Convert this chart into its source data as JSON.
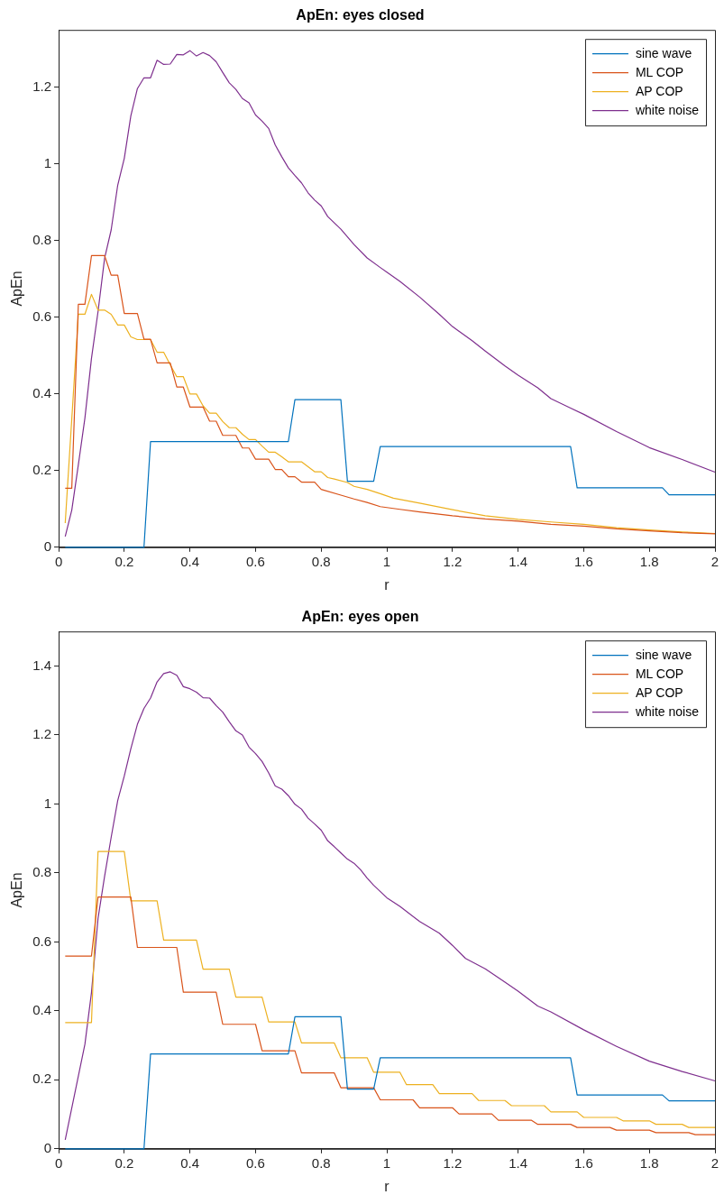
{
  "chart_data": [
    {
      "type": "line",
      "title": "ApEn: eyes closed",
      "xlabel": "r",
      "ylabel": "ApEn",
      "xlim": [
        0,
        2
      ],
      "xticks": [
        0,
        0.2,
        0.4,
        0.6,
        0.8,
        1,
        1.2,
        1.4,
        1.6,
        1.8,
        2
      ],
      "ylim": [
        0,
        1.35
      ],
      "yticks": [
        0,
        0.2,
        0.4,
        0.6,
        0.8,
        1,
        1.2
      ],
      "grid": false,
      "legend": "top right",
      "marker": "none",
      "line_style": "solid",
      "series": [
        {
          "name": "sine wave",
          "color": "#0072bd",
          "x": [
            0.02,
            0.26,
            0.28,
            0.7,
            0.72,
            0.86,
            0.88,
            0.96,
            0.98,
            1.56,
            1.58,
            1.84,
            1.86,
            2
          ],
          "values": [
            0,
            0,
            0.276,
            0.276,
            0.385,
            0.385,
            0.172,
            0.172,
            0.263,
            0.263,
            0.155,
            0.155,
            0.137,
            0.137
          ]
        },
        {
          "name": "ML COP",
          "color": "#d95319",
          "x": [
            0.02,
            0.04,
            0.06,
            0.08,
            0.1,
            0.14,
            0.16,
            0.18,
            0.2,
            0.24,
            0.26,
            0.28,
            0.3,
            0.34,
            0.36,
            0.38,
            0.4,
            0.44,
            0.46,
            0.48,
            0.5,
            0.54,
            0.56,
            0.58,
            0.6,
            0.64,
            0.66,
            0.68,
            0.7,
            0.72,
            0.74,
            0.78,
            0.8,
            0.86,
            0.9,
            0.94,
            0.98,
            1.04,
            1.1,
            1.2,
            1.3,
            1.4,
            1.5,
            1.6,
            1.7,
            1.8,
            1.9,
            2
          ],
          "values": [
            0.154,
            0.154,
            0.634,
            0.634,
            0.761,
            0.761,
            0.71,
            0.71,
            0.61,
            0.61,
            0.543,
            0.543,
            0.481,
            0.481,
            0.418,
            0.418,
            0.366,
            0.366,
            0.329,
            0.329,
            0.292,
            0.292,
            0.259,
            0.259,
            0.23,
            0.23,
            0.203,
            0.203,
            0.184,
            0.184,
            0.17,
            0.17,
            0.151,
            0.136,
            0.126,
            0.117,
            0.106,
            0.099,
            0.092,
            0.082,
            0.074,
            0.068,
            0.06,
            0.055,
            0.048,
            0.043,
            0.038,
            0.035
          ]
        },
        {
          "name": "AP COP",
          "color": "#edb120",
          "x": [
            0.02,
            0.06,
            0.08,
            0.1,
            0.12,
            0.14,
            0.16,
            0.18,
            0.2,
            0.22,
            0.24,
            0.28,
            0.3,
            0.32,
            0.34,
            0.36,
            0.38,
            0.4,
            0.42,
            0.44,
            0.46,
            0.48,
            0.5,
            0.52,
            0.54,
            0.56,
            0.58,
            0.6,
            0.62,
            0.64,
            0.66,
            0.68,
            0.7,
            0.74,
            0.76,
            0.78,
            0.8,
            0.82,
            0.84,
            0.88,
            0.9,
            0.94,
            0.98,
            1.02,
            1.1,
            1.2,
            1.3,
            1.4,
            1.5,
            1.6,
            1.7,
            1.8,
            1.9,
            2
          ],
          "values": [
            0.063,
            0.608,
            0.608,
            0.66,
            0.619,
            0.619,
            0.608,
            0.58,
            0.58,
            0.549,
            0.542,
            0.542,
            0.509,
            0.509,
            0.476,
            0.445,
            0.445,
            0.4,
            0.4,
            0.369,
            0.35,
            0.35,
            0.328,
            0.312,
            0.312,
            0.295,
            0.281,
            0.281,
            0.264,
            0.248,
            0.248,
            0.236,
            0.223,
            0.223,
            0.21,
            0.197,
            0.197,
            0.182,
            0.178,
            0.169,
            0.159,
            0.151,
            0.14,
            0.128,
            0.115,
            0.098,
            0.082,
            0.073,
            0.066,
            0.06,
            0.051,
            0.045,
            0.04,
            0.036
          ]
        },
        {
          "name": "white noise",
          "color": "#7e2f8e",
          "x": [
            0.02,
            0.04,
            0.06,
            0.08,
            0.1,
            0.12,
            0.14,
            0.16,
            0.18,
            0.2,
            0.22,
            0.24,
            0.26,
            0.28,
            0.3,
            0.32,
            0.34,
            0.36,
            0.38,
            0.4,
            0.42,
            0.44,
            0.46,
            0.48,
            0.5,
            0.52,
            0.54,
            0.56,
            0.58,
            0.6,
            0.62,
            0.64,
            0.66,
            0.68,
            0.7,
            0.72,
            0.74,
            0.76,
            0.78,
            0.8,
            0.82,
            0.86,
            0.9,
            0.94,
            0.98,
            1,
            1.04,
            1.1,
            1.16,
            1.2,
            1.26,
            1.3,
            1.36,
            1.4,
            1.46,
            1.5,
            1.56,
            1.6,
            1.7,
            1.8,
            1.9,
            2
          ],
          "values": [
            0.028,
            0.097,
            0.215,
            0.337,
            0.493,
            0.615,
            0.754,
            0.828,
            0.945,
            1.015,
            1.126,
            1.197,
            1.225,
            1.225,
            1.271,
            1.26,
            1.261,
            1.286,
            1.285,
            1.296,
            1.282,
            1.291,
            1.283,
            1.267,
            1.239,
            1.212,
            1.195,
            1.171,
            1.16,
            1.128,
            1.112,
            1.093,
            1.05,
            1.019,
            0.99,
            0.97,
            0.951,
            0.925,
            0.906,
            0.891,
            0.863,
            0.83,
            0.79,
            0.755,
            0.73,
            0.718,
            0.694,
            0.653,
            0.608,
            0.576,
            0.539,
            0.512,
            0.473,
            0.449,
            0.416,
            0.388,
            0.363,
            0.347,
            0.302,
            0.26,
            0.229,
            0.196
          ]
        }
      ]
    },
    {
      "type": "line",
      "title": "ApEn: eyes open",
      "xlabel": "r",
      "ylabel": "ApEn",
      "xlim": [
        0,
        2
      ],
      "xticks": [
        0,
        0.2,
        0.4,
        0.6,
        0.8,
        1,
        1.2,
        1.4,
        1.6,
        1.8,
        2
      ],
      "ylim": [
        0,
        1.5
      ],
      "yticks": [
        0,
        0.2,
        0.4,
        0.6,
        0.8,
        1,
        1.2,
        1.4
      ],
      "grid": false,
      "legend": "top right",
      "marker": "none",
      "line_style": "solid",
      "series": [
        {
          "name": "sine wave",
          "color": "#0072bd",
          "x": [
            0.02,
            0.26,
            0.28,
            0.7,
            0.72,
            0.86,
            0.88,
            0.96,
            0.98,
            1.56,
            1.58,
            1.84,
            1.86,
            2
          ],
          "values": [
            0,
            0,
            0.275,
            0.275,
            0.383,
            0.383,
            0.173,
            0.173,
            0.264,
            0.264,
            0.156,
            0.156,
            0.139,
            0.139
          ]
        },
        {
          "name": "ML COP",
          "color": "#d95319",
          "x": [
            0.02,
            0.1,
            0.12,
            0.22,
            0.24,
            0.36,
            0.38,
            0.48,
            0.5,
            0.6,
            0.62,
            0.72,
            0.74,
            0.84,
            0.86,
            0.96,
            0.98,
            1.08,
            1.1,
            1.2,
            1.22,
            1.32,
            1.34,
            1.44,
            1.46,
            1.56,
            1.58,
            1.68,
            1.7,
            1.8,
            1.82,
            1.92,
            1.94,
            2
          ],
          "values": [
            0.559,
            0.559,
            0.73,
            0.73,
            0.584,
            0.584,
            0.454,
            0.454,
            0.361,
            0.361,
            0.284,
            0.284,
            0.22,
            0.22,
            0.177,
            0.177,
            0.142,
            0.142,
            0.119,
            0.119,
            0.101,
            0.101,
            0.083,
            0.083,
            0.071,
            0.071,
            0.062,
            0.062,
            0.054,
            0.054,
            0.047,
            0.047,
            0.041,
            0.041
          ]
        },
        {
          "name": "AP COP",
          "color": "#edb120",
          "x": [
            0.02,
            0.1,
            0.12,
            0.2,
            0.22,
            0.3,
            0.32,
            0.42,
            0.44,
            0.52,
            0.54,
            0.62,
            0.64,
            0.72,
            0.74,
            0.84,
            0.86,
            0.94,
            0.96,
            1.04,
            1.06,
            1.14,
            1.16,
            1.26,
            1.28,
            1.36,
            1.38,
            1.48,
            1.5,
            1.58,
            1.6,
            1.7,
            1.72,
            1.8,
            1.82,
            1.9,
            1.92,
            2
          ],
          "values": [
            0.366,
            0.366,
            0.862,
            0.862,
            0.719,
            0.719,
            0.605,
            0.605,
            0.521,
            0.521,
            0.44,
            0.44,
            0.368,
            0.368,
            0.307,
            0.307,
            0.264,
            0.264,
            0.222,
            0.222,
            0.186,
            0.186,
            0.16,
            0.16,
            0.14,
            0.14,
            0.125,
            0.125,
            0.107,
            0.107,
            0.091,
            0.091,
            0.081,
            0.081,
            0.071,
            0.071,
            0.062,
            0.062
          ]
        },
        {
          "name": "white noise",
          "color": "#7e2f8e",
          "x": [
            0.02,
            0.08,
            0.1,
            0.12,
            0.14,
            0.16,
            0.18,
            0.2,
            0.22,
            0.24,
            0.26,
            0.28,
            0.3,
            0.32,
            0.34,
            0.36,
            0.38,
            0.4,
            0.42,
            0.44,
            0.46,
            0.48,
            0.5,
            0.52,
            0.54,
            0.56,
            0.58,
            0.6,
            0.62,
            0.64,
            0.66,
            0.68,
            0.7,
            0.72,
            0.74,
            0.76,
            0.78,
            0.8,
            0.82,
            0.84,
            0.86,
            0.88,
            0.9,
            0.92,
            0.94,
            0.96,
            1,
            1.04,
            1.1,
            1.16,
            1.2,
            1.24,
            1.3,
            1.36,
            1.4,
            1.46,
            1.5,
            1.6,
            1.7,
            1.8,
            1.9,
            2
          ],
          "values": [
            0.026,
            0.303,
            0.453,
            0.668,
            0.79,
            0.903,
            1.01,
            1.081,
            1.16,
            1.231,
            1.277,
            1.307,
            1.354,
            1.378,
            1.383,
            1.373,
            1.34,
            1.334,
            1.324,
            1.308,
            1.307,
            1.285,
            1.266,
            1.238,
            1.212,
            1.2,
            1.165,
            1.146,
            1.123,
            1.09,
            1.052,
            1.043,
            1.024,
            0.999,
            0.985,
            0.959,
            0.942,
            0.924,
            0.893,
            0.876,
            0.858,
            0.84,
            0.828,
            0.809,
            0.785,
            0.764,
            0.728,
            0.703,
            0.659,
            0.625,
            0.59,
            0.552,
            0.522,
            0.483,
            0.457,
            0.414,
            0.397,
            0.345,
            0.297,
            0.254,
            0.224,
            0.197
          ]
        }
      ]
    }
  ]
}
